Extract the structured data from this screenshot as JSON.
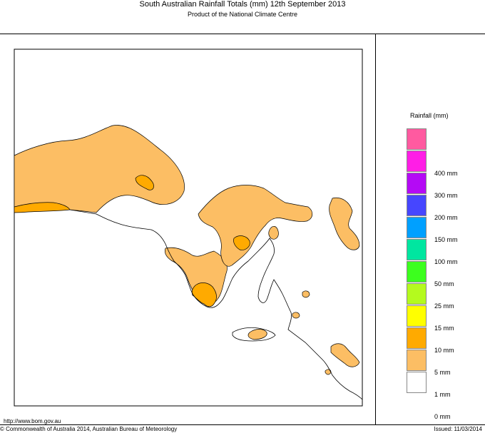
{
  "header": {
    "title": "South Australian Rainfall Totals (mm)   12th September 2013",
    "subtitle": "Product of the National Climate Centre"
  },
  "legend": {
    "title": "Rainfall (mm)",
    "items": [
      {
        "label": "",
        "color": "#ff5aa0"
      },
      {
        "label": "400 mm",
        "color": "#ff1ee6"
      },
      {
        "label": "300 mm",
        "color": "#b40af5"
      },
      {
        "label": "200 mm",
        "color": "#4646ff"
      },
      {
        "label": "150 mm",
        "color": "#00a0ff"
      },
      {
        "label": "100 mm",
        "color": "#00e6a0"
      },
      {
        "label": "50 mm",
        "color": "#3cff1e"
      },
      {
        "label": "25 mm",
        "color": "#b4fa1e"
      },
      {
        "label": "15 mm",
        "color": "#ffff00"
      },
      {
        "label": "10 mm",
        "color": "#ffaa00"
      },
      {
        "label": "5 mm",
        "color": "#fcbe64"
      },
      {
        "label": "1 mm",
        "color": "#ffffff"
      },
      {
        "label": "0 mm",
        "color": ""
      }
    ]
  },
  "footer": {
    "url": "http://www.bom.gov.au",
    "copyright": "© Commonwealth of Australia 2014, Australian Bureau of Meteorology",
    "issued": "Issued: 11/03/2014"
  },
  "map": {
    "colors": {
      "light_orange": "#fcbe64",
      "orange": "#ffaa00",
      "coastline": "#000000"
    }
  }
}
